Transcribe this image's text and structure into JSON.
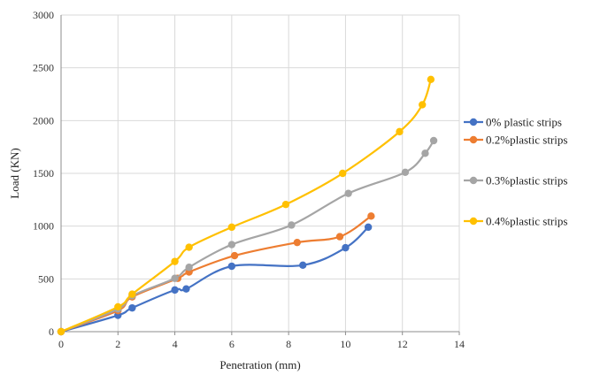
{
  "chart_data": {
    "type": "line",
    "title": "",
    "xlabel": "Penetration (mm)",
    "ylabel": "Load (KN)",
    "xlim": [
      0,
      14
    ],
    "ylim": [
      0,
      3000
    ],
    "xticks": [
      0,
      2,
      4,
      6,
      8,
      10,
      12,
      14
    ],
    "yticks": [
      0,
      500,
      1000,
      1500,
      2000,
      2500,
      3000
    ],
    "grid": true,
    "legend_position": "right",
    "series": [
      {
        "name": "0% plastic strips",
        "color": "#4472C4",
        "x": [
          0,
          2,
          2.5,
          4,
          4.4,
          6,
          8.5,
          10,
          10.8
        ],
        "y": [
          0,
          155,
          225,
          395,
          405,
          620,
          630,
          795,
          990
        ]
      },
      {
        "name": "0.2%plastic strips",
        "color": "#ED7D31",
        "x": [
          0,
          2,
          2.5,
          4.1,
          4.5,
          6.1,
          8.3,
          9.8,
          10.9
        ],
        "y": [
          0,
          200,
          330,
          505,
          565,
          720,
          845,
          900,
          1095
        ]
      },
      {
        "name": "0.3%plastic strips",
        "color": "#A5A5A5",
        "x": [
          0,
          2,
          2.5,
          4,
          4.5,
          6,
          8.1,
          10.1,
          12.1,
          12.8,
          13.1
        ],
        "y": [
          0,
          215,
          340,
          505,
          610,
          825,
          1010,
          1310,
          1510,
          1690,
          1810
        ]
      },
      {
        "name": "0.4%plastic strips",
        "color": "#FFC000",
        "x": [
          0,
          2,
          2.5,
          4,
          4.5,
          6,
          7.9,
          9.9,
          11.9,
          12.7,
          13
        ],
        "y": [
          0,
          235,
          355,
          665,
          800,
          990,
          1205,
          1500,
          1895,
          2150,
          2390
        ]
      }
    ]
  }
}
